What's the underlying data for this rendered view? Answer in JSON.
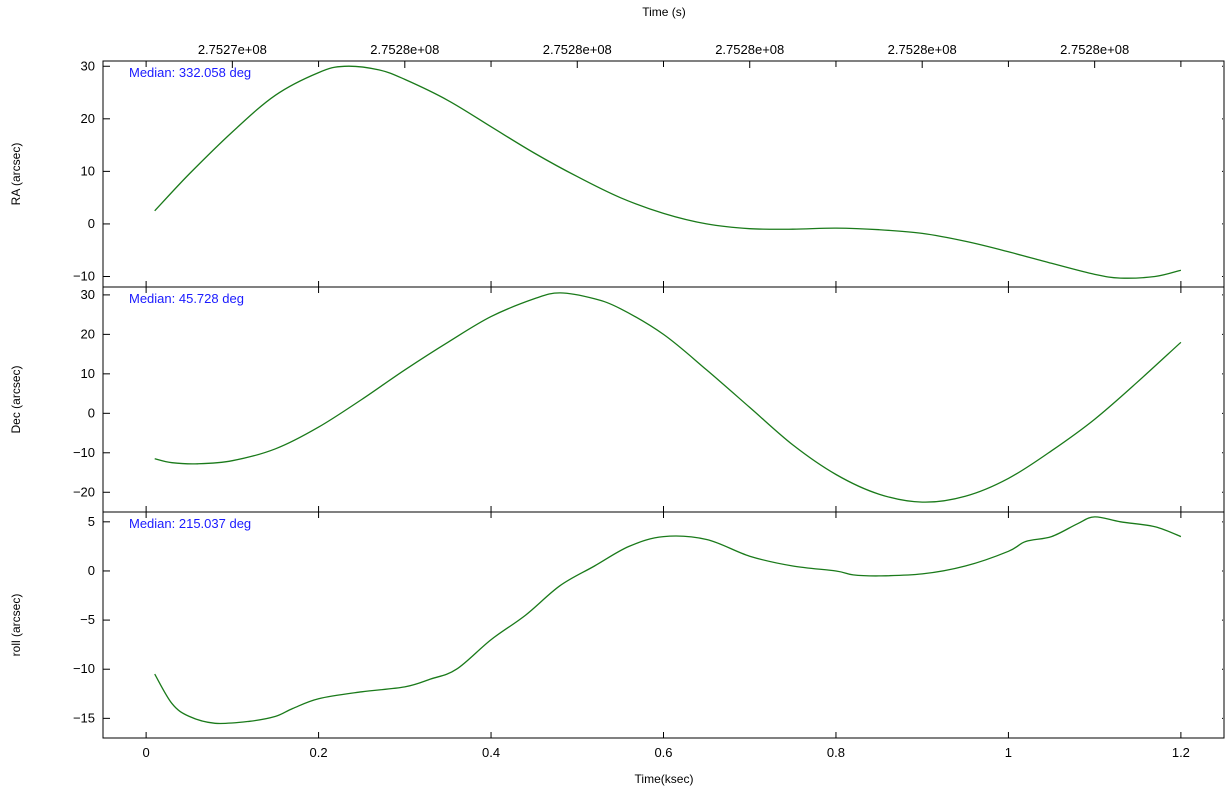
{
  "chart_data": {
    "type": "line",
    "top_axis": {
      "label": "Time (s)",
      "tick_values": [
        0.1,
        0.3,
        0.5,
        0.7,
        0.9,
        1.1,
        1.3
      ],
      "tick_labels": [
        "2.7527e+08",
        "2.7528e+08",
        "2.7528e+08",
        "2.7528e+08",
        "2.7528e+08",
        "2.7528e+08",
        "2.7528e+08"
      ]
    },
    "x_axis": {
      "label": "Time(ksec)",
      "range": [
        -0.05,
        1.25
      ],
      "tick_values": [
        0,
        0.2,
        0.4,
        0.6,
        0.8,
        1,
        1.2
      ],
      "tick_labels": [
        "0",
        "0.2",
        "0.4",
        "0.6",
        "0.8",
        "1",
        "1.2"
      ]
    },
    "line_color": "#1a7a1a",
    "annotation_color": "#1a1aff",
    "grid": false,
    "panels": [
      {
        "id": "ra",
        "ylabel": "RA (arcsec)",
        "annotation": "Median: 332.058 deg",
        "ylim": [
          -12,
          31
        ],
        "yticks": [
          30,
          20,
          10,
          0,
          -10
        ],
        "ytick_labels": [
          "30",
          "20",
          "10",
          "0",
          "−10"
        ],
        "x": [
          0.01,
          0.05,
          0.1,
          0.15,
          0.2,
          0.23,
          0.27,
          0.3,
          0.35,
          0.4,
          0.45,
          0.5,
          0.55,
          0.6,
          0.65,
          0.7,
          0.75,
          0.8,
          0.85,
          0.9,
          0.95,
          1.0,
          1.05,
          1.1,
          1.13,
          1.17,
          1.2
        ],
        "y": [
          2.5,
          9.5,
          17.5,
          24.5,
          28.8,
          30.0,
          29.3,
          27.5,
          23.5,
          18.5,
          13.5,
          9.0,
          5.0,
          2.0,
          0.0,
          -0.9,
          -1.0,
          -0.8,
          -1.1,
          -1.8,
          -3.3,
          -5.3,
          -7.5,
          -9.6,
          -10.3,
          -10.0,
          -8.8
        ]
      },
      {
        "id": "dec",
        "ylabel": "Dec (arcsec)",
        "annotation": "Median: 45.728 deg",
        "ylim": [
          -25,
          32
        ],
        "yticks": [
          30,
          20,
          10,
          0,
          -10,
          -20
        ],
        "ytick_labels": [
          "30",
          "20",
          "10",
          "0",
          "−10",
          "−20"
        ],
        "x": [
          0.01,
          0.03,
          0.06,
          0.1,
          0.15,
          0.2,
          0.25,
          0.3,
          0.35,
          0.4,
          0.45,
          0.48,
          0.52,
          0.55,
          0.6,
          0.65,
          0.7,
          0.75,
          0.8,
          0.85,
          0.9,
          0.95,
          1.0,
          1.05,
          1.1,
          1.15,
          1.2
        ],
        "y": [
          -11.5,
          -12.5,
          -12.8,
          -12.0,
          -9.0,
          -3.5,
          3.5,
          11.0,
          18.0,
          24.5,
          29.0,
          30.5,
          29.0,
          26.5,
          20.0,
          11.0,
          1.5,
          -8.0,
          -15.5,
          -20.5,
          -22.5,
          -21.0,
          -16.5,
          -9.5,
          -1.5,
          8.0,
          18.0
        ]
      },
      {
        "id": "roll",
        "ylabel": "roll (arcsec)",
        "annotation": "Median: 215.037 deg",
        "ylim": [
          -17,
          6
        ],
        "yticks": [
          5,
          0,
          -5,
          -10,
          -15
        ],
        "ytick_labels": [
          "5",
          "0",
          "−5",
          "−10",
          "−15"
        ],
        "x": [
          0.01,
          0.03,
          0.05,
          0.08,
          0.12,
          0.15,
          0.17,
          0.2,
          0.25,
          0.3,
          0.33,
          0.36,
          0.4,
          0.44,
          0.48,
          0.52,
          0.56,
          0.6,
          0.65,
          0.7,
          0.75,
          0.8,
          0.82,
          0.85,
          0.9,
          0.95,
          1.0,
          1.02,
          1.05,
          1.08,
          1.1,
          1.13,
          1.17,
          1.2
        ],
        "y": [
          -10.5,
          -13.5,
          -14.8,
          -15.5,
          -15.3,
          -14.8,
          -14.0,
          -13.0,
          -12.3,
          -11.8,
          -11.0,
          -10.0,
          -7.0,
          -4.5,
          -1.5,
          0.5,
          2.5,
          3.5,
          3.2,
          1.5,
          0.5,
          0.0,
          -0.4,
          -0.5,
          -0.3,
          0.5,
          2.0,
          3.0,
          3.5,
          4.8,
          5.5,
          5.0,
          4.5,
          3.5
        ]
      }
    ]
  }
}
